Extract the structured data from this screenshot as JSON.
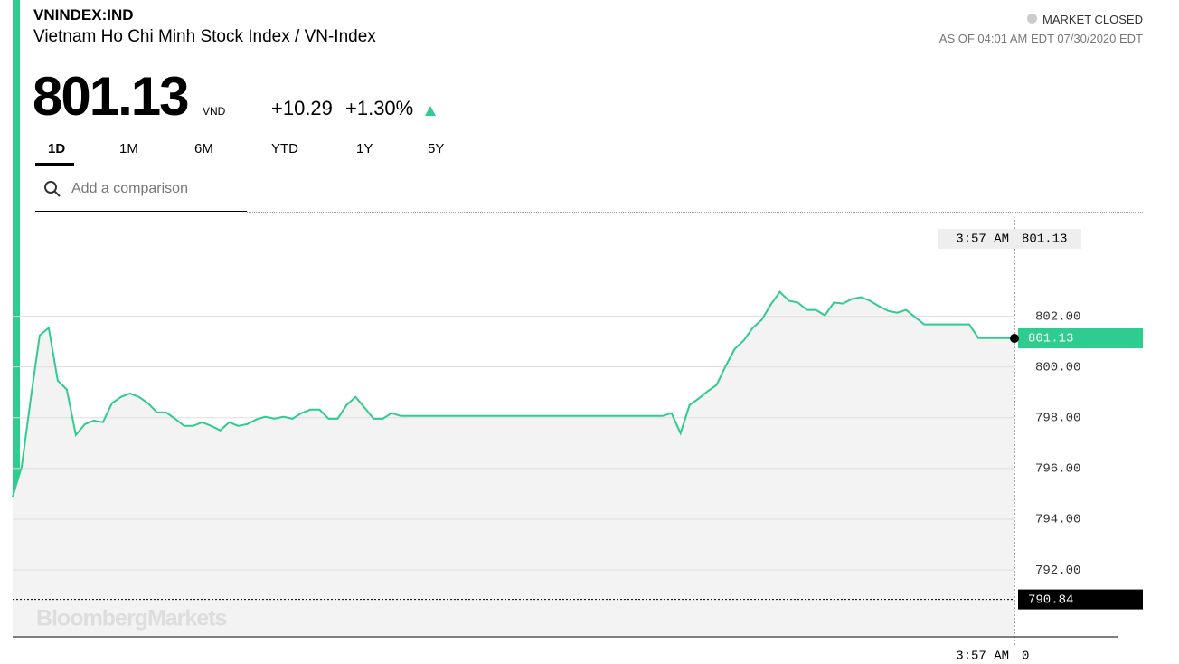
{
  "header": {
    "ticker": "VNINDEX:IND",
    "name": "Vietnam Ho Chi Minh Stock Index / VN-Index",
    "market_status": "MARKET CLOSED",
    "as_of": "AS OF 04:01 AM EDT 07/30/2020 EDT"
  },
  "quote": {
    "price": "801.13",
    "currency": "VND",
    "change": "+10.29",
    "change_pct": "+1.30%"
  },
  "ranges": [
    "1D",
    "1M",
    "6M",
    "YTD",
    "1Y",
    "5Y"
  ],
  "search_placeholder": "Add a comparison",
  "watermark": "BloombergMarkets",
  "chart_data": {
    "type": "line",
    "color": "#2ecc8f",
    "grid": true,
    "values": [
      794.89,
      796.07,
      798.75,
      801.25,
      801.54,
      799.46,
      799.11,
      797.32,
      797.75,
      797.89,
      797.82,
      798.57,
      798.82,
      798.96,
      798.82,
      798.57,
      798.21,
      798.21,
      797.96,
      797.68,
      797.68,
      797.82,
      797.68,
      797.5,
      797.82,
      797.68,
      797.75,
      797.93,
      798.04,
      797.96,
      798.04,
      797.96,
      798.18,
      798.32,
      798.32,
      797.96,
      797.96,
      798.5,
      798.82,
      798.39,
      797.96,
      797.96,
      798.18,
      798.07,
      798.07,
      798.07,
      798.07,
      798.07,
      798.07,
      798.07,
      798.07,
      798.07,
      798.07,
      798.07,
      798.07,
      798.07,
      798.07,
      798.07,
      798.07,
      798.07,
      798.07,
      798.07,
      798.07,
      798.07,
      798.07,
      798.07,
      798.07,
      798.07,
      798.07,
      798.07,
      798.07,
      798.07,
      798.07,
      798.18,
      797.39,
      798.5,
      798.75,
      799.04,
      799.29,
      800.04,
      800.71,
      801.04,
      801.54,
      801.86,
      802.46,
      802.96,
      802.61,
      802.54,
      802.25,
      802.25,
      802.04,
      802.54,
      802.5,
      802.68,
      802.75,
      802.61,
      802.39,
      802.21,
      802.14,
      802.25,
      801.96,
      801.68,
      801.68,
      801.68,
      801.68,
      801.68,
      801.68,
      801.14,
      801.14,
      801.14,
      801.14,
      801.13
    ],
    "ylim": [
      789.4,
      805.8
    ],
    "yticks": [
      {
        "value": 792,
        "label": "792.00"
      },
      {
        "value": 794,
        "label": "794.00"
      },
      {
        "value": 796,
        "label": "796.00"
      },
      {
        "value": 798,
        "label": "798.00"
      },
      {
        "value": 800,
        "label": "800.00"
      },
      {
        "value": 802,
        "label": "802.00"
      }
    ],
    "last_time": "3:57 AM",
    "last_value": 801.13,
    "previous_close": 790.84,
    "volume_time": "3:57 AM",
    "volume": 0
  }
}
